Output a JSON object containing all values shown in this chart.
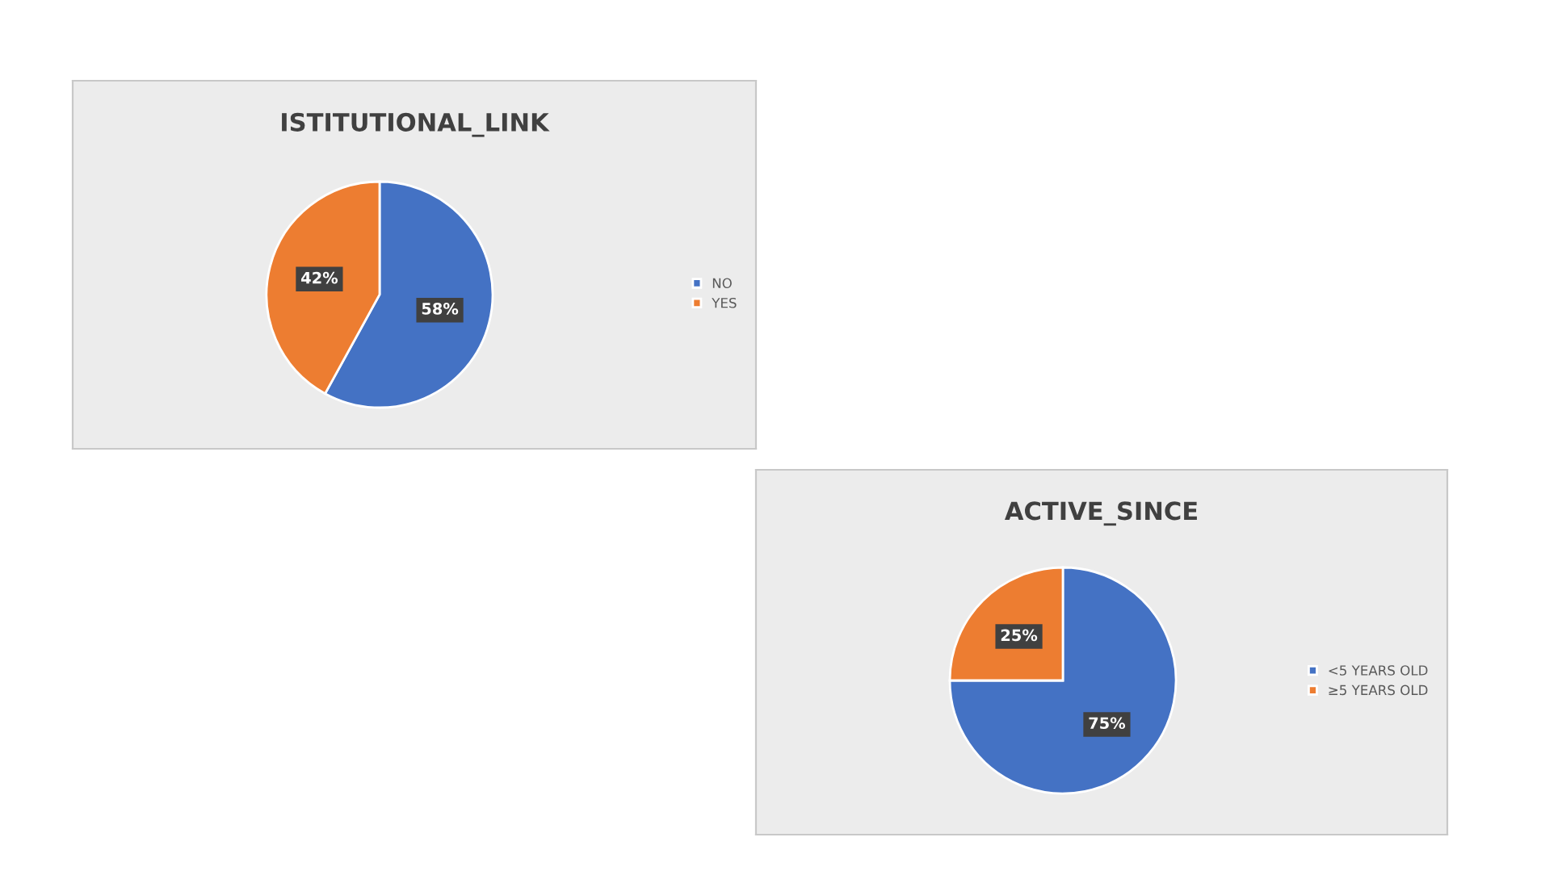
{
  "chart_data": [
    {
      "type": "pie",
      "title": "ISTITUTIONAL_LINK",
      "categories": [
        "NO",
        "YES"
      ],
      "values": [
        58,
        42
      ],
      "value_labels": [
        "58%",
        "42%"
      ],
      "colors": [
        "#4472c4",
        "#ed7d31"
      ],
      "legend": "right"
    },
    {
      "type": "pie",
      "title": "ACTIVE_SINCE",
      "categories": [
        "<5 YEARS OLD",
        "≥5 YEARS OLD"
      ],
      "values": [
        75,
        25
      ],
      "value_labels": [
        "75%",
        "25%"
      ],
      "colors": [
        "#4472c4",
        "#ed7d31"
      ],
      "legend": "right"
    }
  ]
}
